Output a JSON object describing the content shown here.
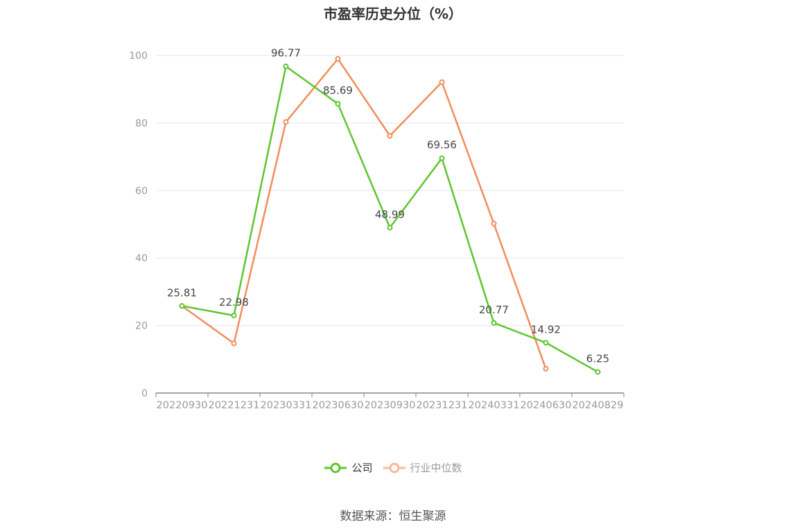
{
  "chart_data": {
    "type": "line",
    "title": "市盈率历史分位（%）",
    "categories": [
      "20220930",
      "20221231",
      "20230331",
      "20230630",
      "20230930",
      "20231231",
      "20240331",
      "20240630",
      "20240829"
    ],
    "ylim": [
      0,
      100
    ],
    "yticks": [
      0,
      20,
      40,
      60,
      80,
      100
    ],
    "grid": true,
    "legend_position": "bottom",
    "series": [
      {
        "name": "公司",
        "color": "#5cc62c",
        "values": [
          25.81,
          22.98,
          96.77,
          85.69,
          48.99,
          69.56,
          20.77,
          14.92,
          6.25
        ],
        "labels": [
          "25.81",
          "22.98",
          "96.77",
          "85.69",
          "48.99",
          "69.56",
          "20.77",
          "14.92",
          "6.25"
        ]
      },
      {
        "name": "行业中位数",
        "color": "#f28c5a",
        "legend_color": "#f8b99a",
        "values": [
          25.8,
          14.7,
          80.3,
          99.0,
          76.2,
          92.1,
          50.2,
          7.2,
          null
        ]
      }
    ]
  },
  "source_text": "数据来源：恒生聚源"
}
